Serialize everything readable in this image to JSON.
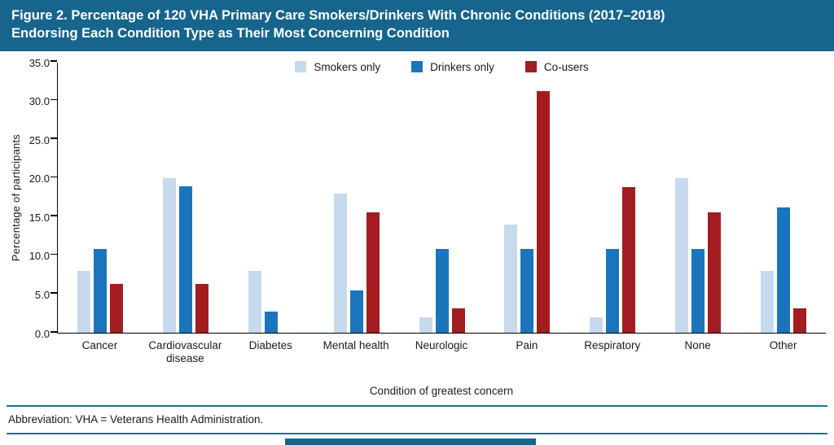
{
  "title": {
    "line1": "Figure 2. Percentage of 120 VHA Primary Care Smokers/Drinkers With Chronic Conditions (2017–2018)",
    "line2": "Endorsing Each Condition Type as Their Most Concerning Condition"
  },
  "footer": {
    "abbreviation": "Abbreviation: VHA = Veterans Health Administration."
  },
  "colors": {
    "header_bg": "#17648d",
    "rule": "#1f6f9f",
    "axis": "#000000"
  },
  "chart_data": {
    "type": "bar",
    "title": "",
    "categories": [
      "Cancer",
      "Cardiovascular disease",
      "Diabetes",
      "Mental health",
      "Neurologic",
      "Pain",
      "Respiratory",
      "None",
      "Other"
    ],
    "series": [
      {
        "name": "Smokers only",
        "color": "#c7d9ec",
        "values": [
          8.0,
          20.0,
          8.0,
          18.0,
          2.0,
          14.0,
          2.0,
          20.0,
          8.0
        ]
      },
      {
        "name": "Drinkers only",
        "color": "#1b75bc",
        "values": [
          10.8,
          18.9,
          2.7,
          5.4,
          10.8,
          10.8,
          10.8,
          10.8,
          16.2
        ]
      },
      {
        "name": "Co-users",
        "color": "#a31d20",
        "values": [
          6.3,
          6.3,
          0.0,
          15.6,
          3.1,
          31.3,
          18.8,
          15.6,
          3.1
        ]
      }
    ],
    "xlabel": "Condition of greatest concern",
    "ylabel": "Percentage of participants",
    "ylim": [
      0,
      35
    ],
    "yticks": [
      0,
      5,
      10,
      15,
      20,
      25,
      30,
      35
    ],
    "ytick_labels": [
      "0.0",
      "5.0",
      "10.0",
      "15.0",
      "20.0",
      "25.0",
      "30.0",
      "35.0"
    ],
    "grid": false,
    "legend_position": "top-center"
  }
}
